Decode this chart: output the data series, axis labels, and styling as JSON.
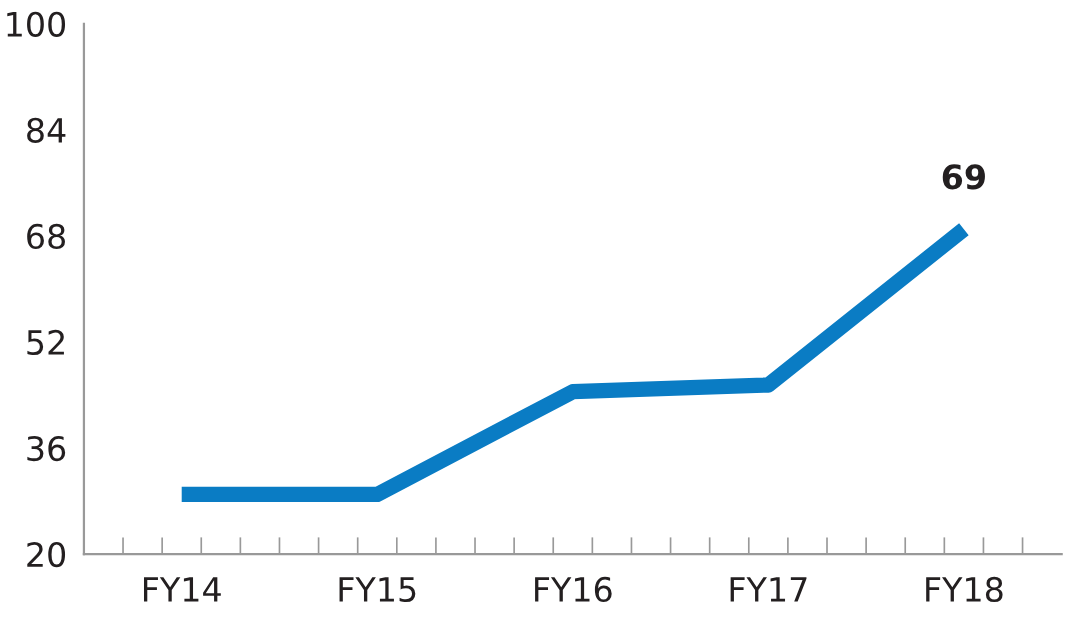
{
  "chart_data": {
    "type": "line",
    "categories": [
      "FY14",
      "FY15",
      "FY16",
      "FY17",
      "FY18"
    ],
    "series": [
      {
        "color": "#0a7cc4",
        "values": [
          29,
          29,
          44.5,
          45.5,
          69
        ],
        "value_labels": [
          null,
          null,
          null,
          null,
          "69"
        ]
      }
    ],
    "ylim": [
      20,
      100
    ],
    "yticks": [
      20,
      36,
      52,
      68,
      84,
      100
    ],
    "grid": false,
    "legend": false,
    "marker": "none",
    "line_style": "solid"
  }
}
